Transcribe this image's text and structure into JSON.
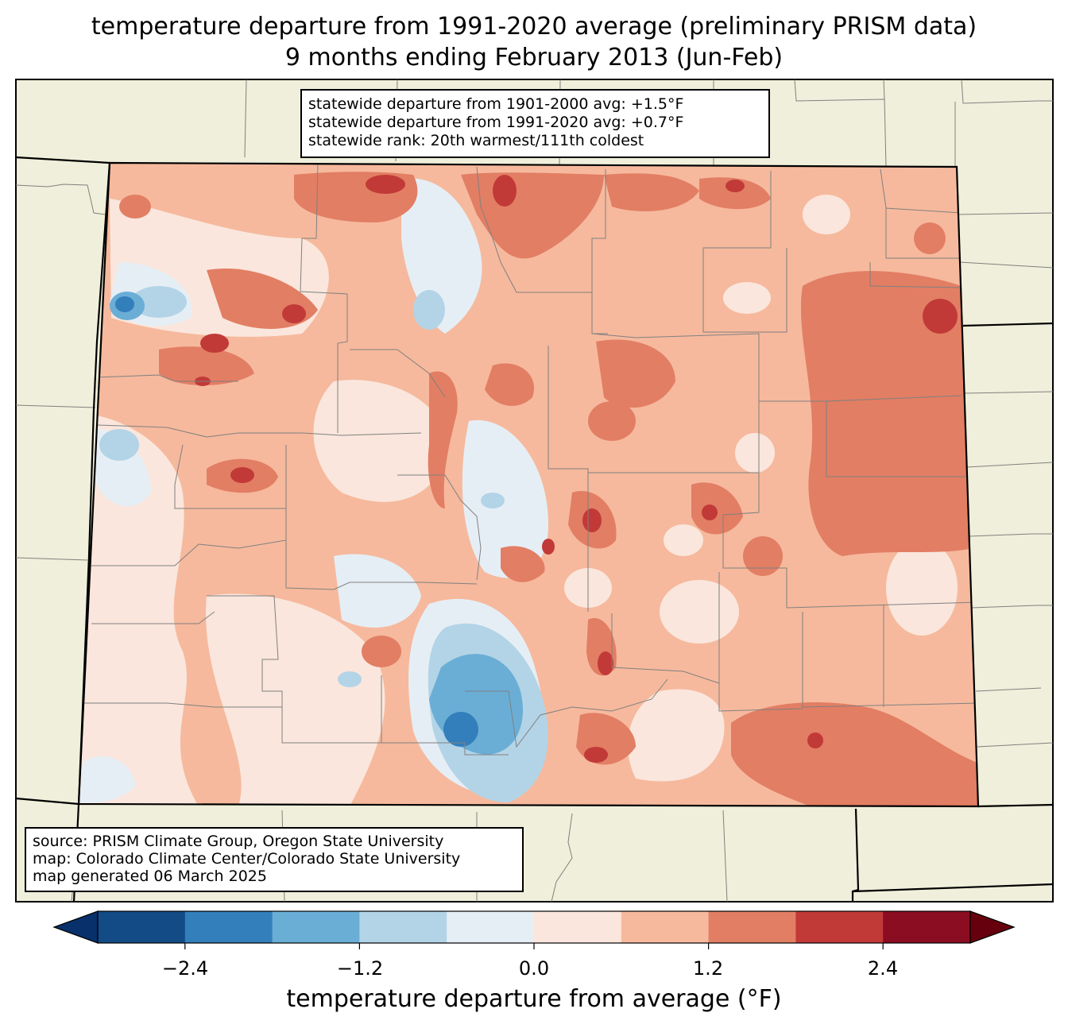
{
  "title": {
    "line1": "temperature departure from 1991-2020 average (preliminary PRISM data)",
    "line2": "9 months ending February 2013 (Jun-Feb)"
  },
  "stats": {
    "line1": "statewide departure from 1901-2000 avg: +1.5°F",
    "line2": "statewide departure from 1991-2020 avg: +0.7°F",
    "line3": "statewide rank: 20th warmest/111th coldest"
  },
  "source": {
    "line1": "source: PRISM Climate Group, Oregon State University",
    "line2": "map: Colorado Climate Center/Colorado State University",
    "line3": "map generated 06 March 2025"
  },
  "colorbar": {
    "label": "temperature departure from average (°F)",
    "ticks": [
      "−2.4",
      "−1.2",
      "0.0",
      "1.2",
      "2.4"
    ],
    "levels": [
      -3.0,
      -2.4,
      -1.8,
      -1.2,
      -0.6,
      0.0,
      0.6,
      1.2,
      1.8,
      2.4,
      3.0
    ],
    "colors": [
      "#08306b",
      "#134b87",
      "#327fbb",
      "#6aaed6",
      "#b3d4e7",
      "#e6eef5",
      "#fae6dc",
      "#f6b99d",
      "#e27e64",
      "#c13a38",
      "#8b0d22",
      "#67000d"
    ]
  },
  "colors": {
    "land": "#efefdb",
    "state_border": "#000000",
    "county_border": "#808080"
  }
}
